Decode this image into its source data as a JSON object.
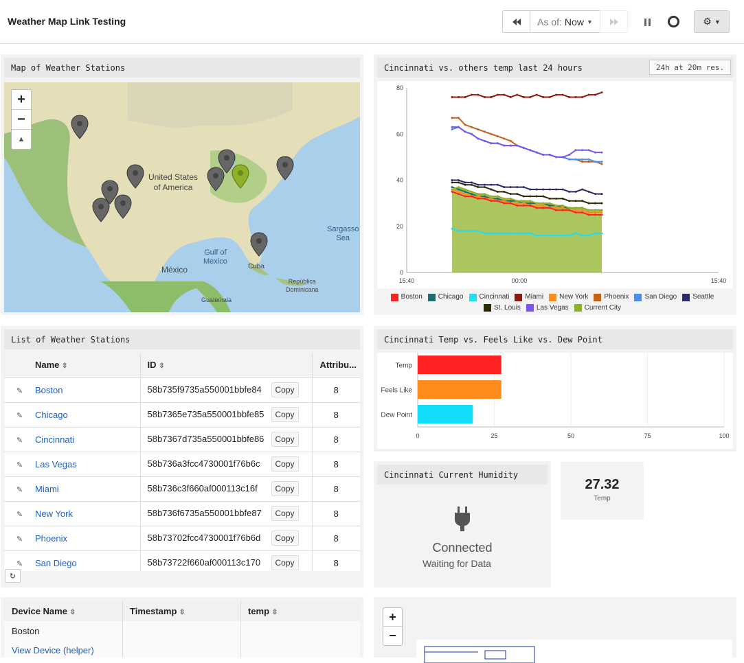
{
  "app": {
    "title": "Weather Map Link Testing"
  },
  "toolbar": {
    "as_of_label": "As of:",
    "as_of_value": "Now"
  },
  "map_panel": {
    "title": "Map of Weather Stations",
    "zoom_in": "+",
    "zoom_out": "−",
    "labels": {
      "usa1": "United States",
      "usa2": "of America",
      "gulf1": "Gulf of",
      "gulf2": "Mexico",
      "mexico": "México",
      "cuba": "Cuba",
      "sargasso1": "Sargasso",
      "sargasso2": "Sea",
      "dr1": "República",
      "dr2": "Dominicana",
      "guatemala": "Guatemala"
    }
  },
  "temp_chart": {
    "title": "Cincinnati vs. others temp last 24 hours",
    "range_badge": "24h at 20m res.",
    "chart_data": {
      "type": "area",
      "xticks": [
        "15:40",
        "00:00",
        "15:40"
      ],
      "ylim": [
        0,
        80
      ],
      "yticks": [
        0,
        20,
        40,
        60,
        80
      ],
      "legend": [
        {
          "name": "Boston",
          "color": "#ff2222"
        },
        {
          "name": "Chicago",
          "color": "#1f6d6d"
        },
        {
          "name": "Cincinnati",
          "color": "#22ddf2"
        },
        {
          "name": "Miami",
          "color": "#8c1a0e"
        },
        {
          "name": "New York",
          "color": "#ff8c1a"
        },
        {
          "name": "Phoenix",
          "color": "#c0621a"
        },
        {
          "name": "San Diego",
          "color": "#4a8ff0"
        },
        {
          "name": "Seattle",
          "color": "#2c2a6b"
        },
        {
          "name": "St. Louis",
          "color": "#2d2a08"
        },
        {
          "name": "Las Vegas",
          "color": "#7c55f0"
        },
        {
          "name": "Current City",
          "color": "#8fb12a"
        }
      ],
      "series": [
        {
          "name": "Miami",
          "values": [
            76,
            76,
            76,
            77,
            77,
            76,
            76,
            77,
            77,
            76,
            77,
            76,
            76,
            77,
            76,
            76,
            77,
            77,
            76,
            76,
            76,
            77,
            77,
            78
          ]
        },
        {
          "name": "Phoenix",
          "values": [
            67,
            67,
            64,
            63,
            62,
            61,
            60,
            59,
            58,
            57,
            55,
            54,
            53,
            52,
            51,
            51,
            50,
            50,
            49,
            49,
            48,
            48,
            48,
            47
          ]
        },
        {
          "name": "San Diego",
          "values": [
            62,
            63,
            61,
            60,
            58,
            57,
            56,
            56,
            55,
            55,
            55,
            54,
            53,
            52,
            51,
            51,
            50,
            50,
            49,
            49,
            49,
            49,
            48,
            48
          ]
        },
        {
          "name": "Las Vegas",
          "values": [
            63,
            63,
            61,
            60,
            58,
            57,
            56,
            56,
            55,
            55,
            55,
            54,
            53,
            52,
            51,
            51,
            50,
            50,
            51,
            53,
            53,
            53,
            52,
            52
          ]
        },
        {
          "name": "Seattle",
          "values": [
            40,
            40,
            39,
            39,
            38,
            38,
            38,
            38,
            37,
            37,
            37,
            37,
            36,
            36,
            36,
            36,
            36,
            36,
            35,
            35,
            36,
            35,
            34,
            34
          ]
        },
        {
          "name": "St. Louis",
          "values": [
            39,
            39,
            38,
            38,
            37,
            37,
            36,
            35,
            35,
            34,
            34,
            33,
            33,
            33,
            33,
            32,
            32,
            32,
            31,
            31,
            31,
            30,
            30,
            30
          ]
        },
        {
          "name": "Chicago",
          "values": [
            37,
            36,
            35,
            34,
            33,
            33,
            32,
            32,
            31,
            31,
            31,
            30,
            30,
            30,
            30,
            29,
            29,
            28,
            28,
            28,
            28,
            27,
            27,
            27
          ]
        },
        {
          "name": "New York",
          "values": [
            36,
            35,
            34,
            33,
            33,
            32,
            32,
            31,
            31,
            30,
            30,
            30,
            29,
            29,
            29,
            28,
            28,
            28,
            27,
            27,
            27,
            26,
            26,
            26
          ]
        },
        {
          "name": "Boston",
          "values": [
            35,
            34,
            33,
            33,
            32,
            32,
            31,
            31,
            30,
            30,
            29,
            29,
            29,
            28,
            28,
            28,
            27,
            27,
            27,
            26,
            26,
            25,
            25,
            25
          ]
        },
        {
          "name": "Current City",
          "values": [
            36,
            37,
            36,
            35,
            34,
            34,
            33,
            33,
            32,
            32,
            31,
            31,
            31,
            30,
            30,
            30,
            29,
            29,
            28,
            28,
            28,
            27,
            27,
            27
          ]
        },
        {
          "name": "Cincinnati",
          "values": [
            19,
            18,
            18,
            18,
            18,
            17,
            17,
            17,
            17,
            17,
            17,
            17,
            17,
            16,
            16,
            16,
            16,
            16,
            16,
            17,
            16,
            16,
            17,
            17
          ]
        }
      ]
    }
  },
  "list_panel": {
    "title": "List of Weather Stations",
    "columns": {
      "name": "Name",
      "id": "ID",
      "attr": "Attribu..."
    },
    "rows": [
      {
        "name": "Boston",
        "id": "58b735f9735a550001bbfe84",
        "copy": "Copy",
        "attr": "8"
      },
      {
        "name": "Chicago",
        "id": "58b7365e735a550001bbfe85",
        "copy": "Copy",
        "attr": "8"
      },
      {
        "name": "Cincinnati",
        "id": "58b7367d735a550001bbfe86",
        "copy": "Copy",
        "attr": "8"
      },
      {
        "name": "Las Vegas",
        "id": "58b736a3fcc4730001f76b6c",
        "copy": "Copy",
        "attr": "8"
      },
      {
        "name": "Miami",
        "id": "58b736c3f660af000113c16f",
        "copy": "Copy",
        "attr": "8"
      },
      {
        "name": "New York",
        "id": "58b736f6735a550001bbfe87",
        "copy": "Copy",
        "attr": "8"
      },
      {
        "name": "Phoenix",
        "id": "58b73702fcc4730001f76b6d",
        "copy": "Copy",
        "attr": "8"
      },
      {
        "name": "San Diego",
        "id": "58b73722f660af000113c170",
        "copy": "Copy",
        "attr": "8"
      }
    ]
  },
  "bar_panel": {
    "title": "Cincinnati Temp vs. Feels Like vs. Dew Point",
    "chart_data": {
      "type": "bar",
      "categories": [
        "Temp",
        "Feels Like",
        "Dew Point"
      ],
      "values": [
        27.3,
        27.3,
        18
      ],
      "colors": [
        "#ff2222",
        "#ff8c1a",
        "#11ddf8"
      ],
      "xlim": [
        0,
        100
      ],
      "xticks": [
        0,
        25,
        50,
        75,
        100
      ]
    }
  },
  "humidity_panel": {
    "title": "Cincinnati Current Humidity",
    "status": "Connected",
    "substatus": "Waiting for Data"
  },
  "temp_value": {
    "value": "27.32",
    "label": "Temp"
  },
  "device_table": {
    "columns": {
      "device": "Device Name",
      "timestamp": "Timestamp",
      "temp": "temp"
    },
    "device": "Boston",
    "link": "View Device (helper)"
  },
  "map2": {
    "zoom_in": "+",
    "zoom_out": "−"
  }
}
